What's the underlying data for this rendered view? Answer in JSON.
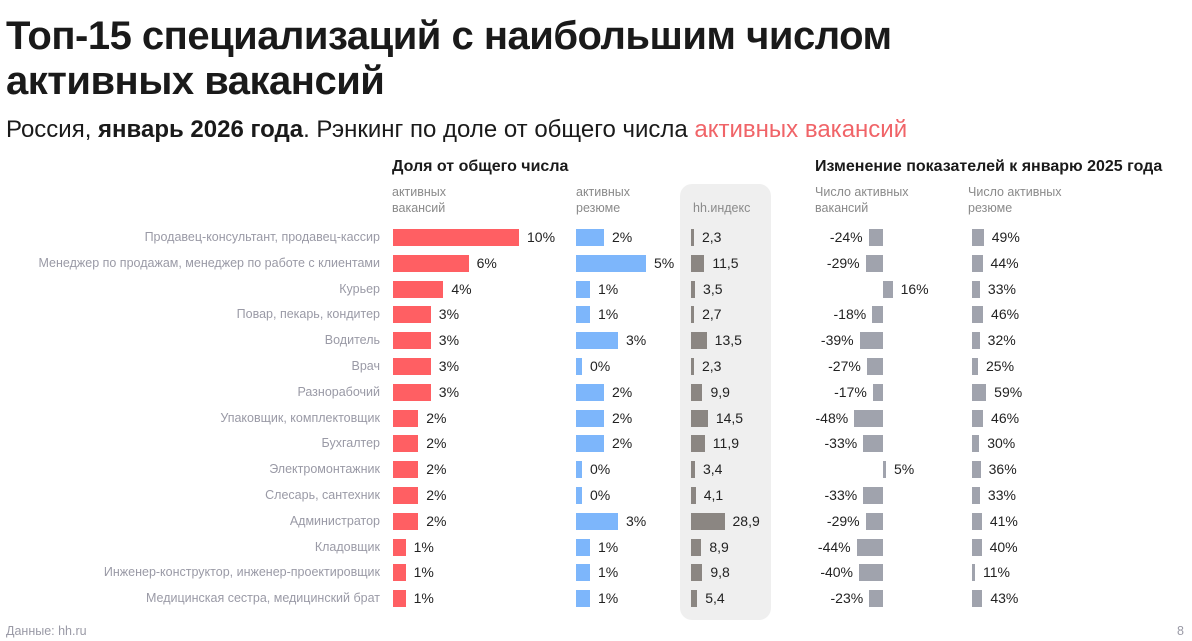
{
  "header": {
    "title": "Топ-15 специализаций с наибольшим числом активных вакансий",
    "subtitle_region": "Россия, ",
    "subtitle_period": "январь 2026 года",
    "subtitle_text": ". Рэнкинг по доле от общего числа ",
    "subtitle_accent": "активных вакансий"
  },
  "colors": {
    "vacancies": "#ff5f63",
    "resumes": "#7db6fb",
    "hh_index": "#8b8682",
    "change": "#a0a3ad",
    "accent_text": "#f06468",
    "panel": "#efefef"
  },
  "footer": {
    "source": "Данные: hh.ru",
    "page": "8"
  },
  "chart_data": {
    "type": "table",
    "title": "Топ-15 специализаций с наибольшим числом активных вакансий",
    "group_share": "Доля от общего числа",
    "group_change": "Изменение показателей к январю 2025 года",
    "columns": {
      "vac_share": "активных\nвакансий",
      "res_share": "активных\nрезюме",
      "hh_index": "hh.индекс",
      "vac_change": "Число активных\nвакансий",
      "res_change": "Число активных\nрезюме"
    },
    "categories": [
      "Продавец-консультант, продавец-кассир",
      "Менеджер по продажам, менеджер по работе с клиентами",
      "Курьер",
      "Повар, пекарь, кондитер",
      "Водитель",
      "Врач",
      "Разнорабочий",
      "Упаковщик, комплектовщик",
      "Бухгалтер",
      "Электромонтажник",
      "Слесарь, сантехник",
      "Администратор",
      "Кладовщик",
      "Инженер-конструктор, инженер-проектировщик",
      "Медицинская сестра, медицинский брат"
    ],
    "series": [
      {
        "name": "vac_share",
        "unit": "%",
        "values": [
          10,
          6,
          4,
          3,
          3,
          3,
          3,
          2,
          2,
          2,
          2,
          2,
          1,
          1,
          1
        ]
      },
      {
        "name": "res_share",
        "unit": "%",
        "values": [
          2,
          5,
          1,
          1,
          3,
          0,
          2,
          2,
          2,
          0,
          0,
          3,
          1,
          1,
          1
        ]
      },
      {
        "name": "hh_index",
        "unit": "",
        "values": [
          2.3,
          11.5,
          3.5,
          2.7,
          13.5,
          2.3,
          9.9,
          14.5,
          11.9,
          3.4,
          4.1,
          28.9,
          8.9,
          9.8,
          5.4
        ]
      },
      {
        "name": "vac_change",
        "unit": "%",
        "values": [
          -24,
          -29,
          16,
          -18,
          -39,
          -27,
          -17,
          -48,
          -33,
          5,
          -33,
          -29,
          -44,
          -40,
          -23
        ]
      },
      {
        "name": "res_change",
        "unit": "%",
        "values": [
          49,
          44,
          33,
          46,
          32,
          25,
          59,
          46,
          30,
          36,
          33,
          41,
          40,
          11,
          43
        ]
      }
    ]
  }
}
